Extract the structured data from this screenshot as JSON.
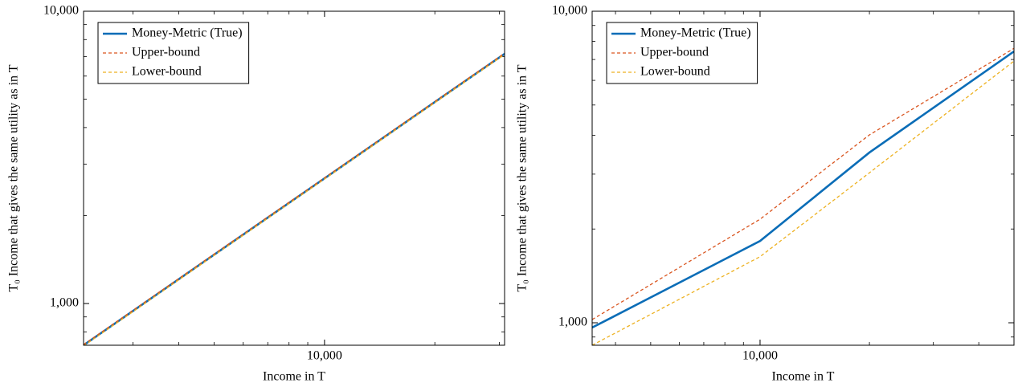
{
  "chart_data": [
    {
      "type": "line",
      "log_x": true,
      "log_y": true,
      "xlabel": "Income in T",
      "ylabel": "T₀ Income that gives the same utility as in T",
      "x": [
        2200,
        5000,
        10000,
        20000,
        31000
      ],
      "series": [
        {
          "name": "Money-Metric (True)",
          "color": "#0b6db7",
          "dashed": false,
          "values": [
            720,
            1470,
            2680,
            4890,
            7150
          ]
        },
        {
          "name": "Upper-bound",
          "color": "#d9541e",
          "dashed": true,
          "values": [
            724,
            1478,
            2694,
            4915,
            7186
          ]
        },
        {
          "name": "Lower-bound",
          "color": "#edb120",
          "dashed": true,
          "values": [
            716,
            1462,
            2666,
            4865,
            7114
          ]
        }
      ],
      "xlim": [
        2200,
        31000
      ],
      "ylim": [
        720,
        10000
      ],
      "xticks": [
        {
          "value": 10000,
          "label": "10,000"
        }
      ],
      "yticks": [
        {
          "value": 1000,
          "label": "1,000"
        },
        {
          "value": 10000,
          "label": "10,000"
        }
      ],
      "legend": "upper left"
    },
    {
      "type": "line",
      "log_x": true,
      "log_y": true,
      "xlabel": "Income in T",
      "ylabel": "T₀ Income that gives the same utility as in T",
      "x": [
        3450,
        10000,
        20000,
        50000
      ],
      "series": [
        {
          "name": "Money-Metric (True)",
          "color": "#0b6db7",
          "dashed": false,
          "values": [
            965,
            1830,
            3520,
            7430
          ]
        },
        {
          "name": "Upper-bound",
          "color": "#d9541e",
          "dashed": true,
          "values": [
            1024,
            2150,
            4010,
            7600
          ]
        },
        {
          "name": "Lower-bound",
          "color": "#edb120",
          "dashed": true,
          "values": [
            847,
            1630,
            3030,
            6920
          ]
        }
      ],
      "xlim": [
        3450,
        50000
      ],
      "ylim": [
        847,
        10000
      ],
      "xticks": [
        {
          "value": 10000,
          "label": "10,000"
        }
      ],
      "yticks": [
        {
          "value": 1000,
          "label": "1,000"
        },
        {
          "value": 10000,
          "label": "10,000"
        }
      ],
      "legend": "upper left"
    }
  ]
}
